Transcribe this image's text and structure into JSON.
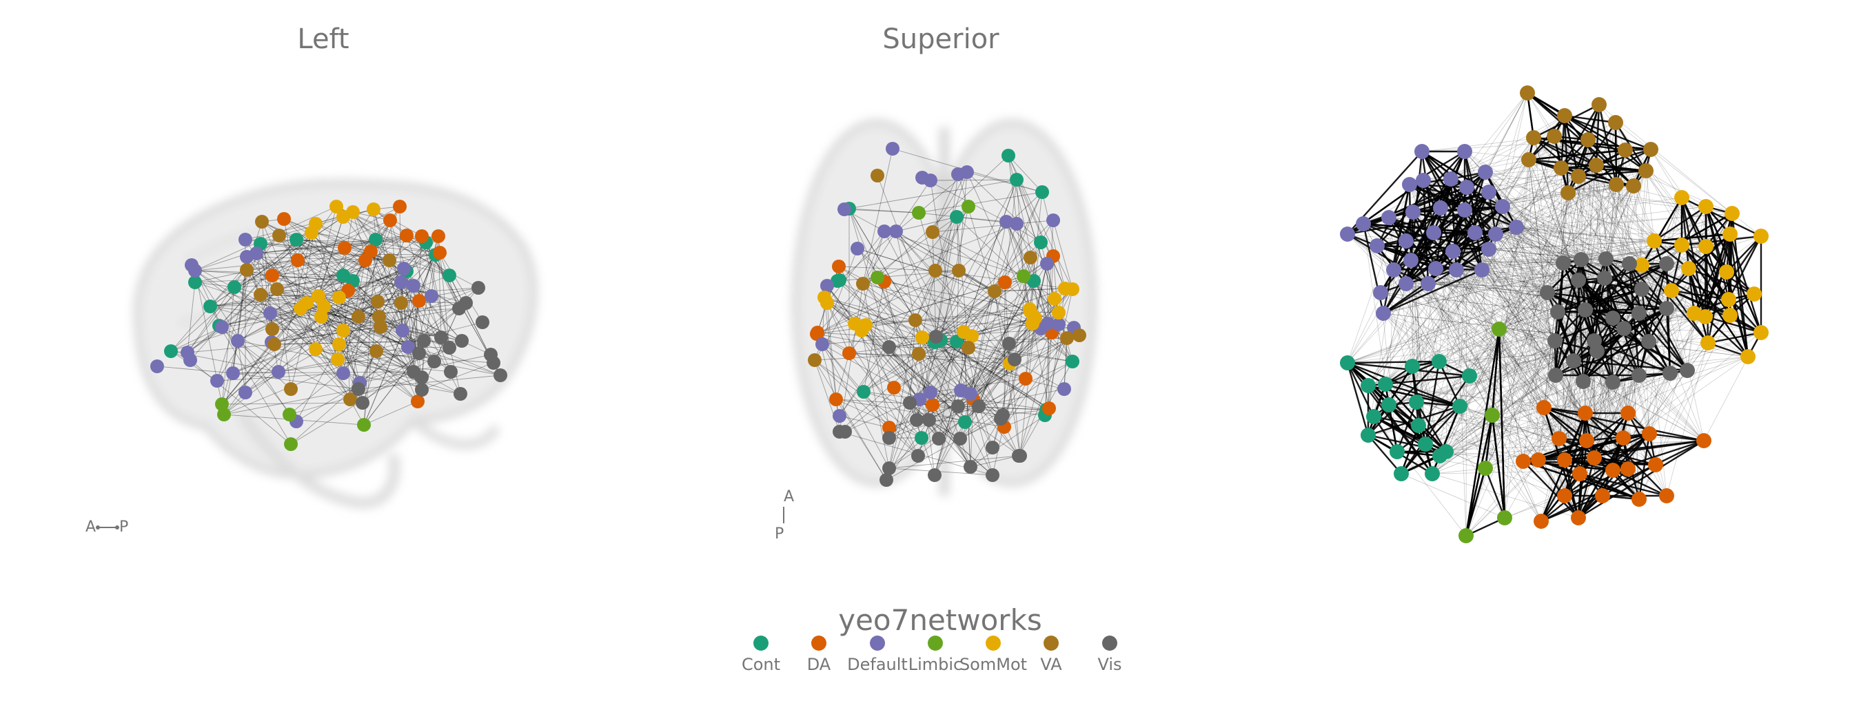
{
  "panels": {
    "left": {
      "title": "Left",
      "orientation": [
        "A",
        "P"
      ]
    },
    "superior": {
      "title": "Superior",
      "orientation": [
        "A",
        "P"
      ]
    }
  },
  "legend": {
    "title": "yeo7networks",
    "items": [
      {
        "label": "Cont",
        "color": "#1b9e77"
      },
      {
        "label": "DA",
        "color": "#d95f02"
      },
      {
        "label": "Default",
        "color": "#7570b3"
      },
      {
        "label": "Limbic",
        "color": "#66a61e"
      },
      {
        "label": "SomMot",
        "color": "#e6ab02"
      },
      {
        "label": "VA",
        "color": "#a6761d"
      },
      {
        "label": "Vis",
        "color": "#666666"
      }
    ]
  },
  "colors": {
    "text": "#757575",
    "brain_fill": "#e8e8e8",
    "edge": "#000000"
  }
}
